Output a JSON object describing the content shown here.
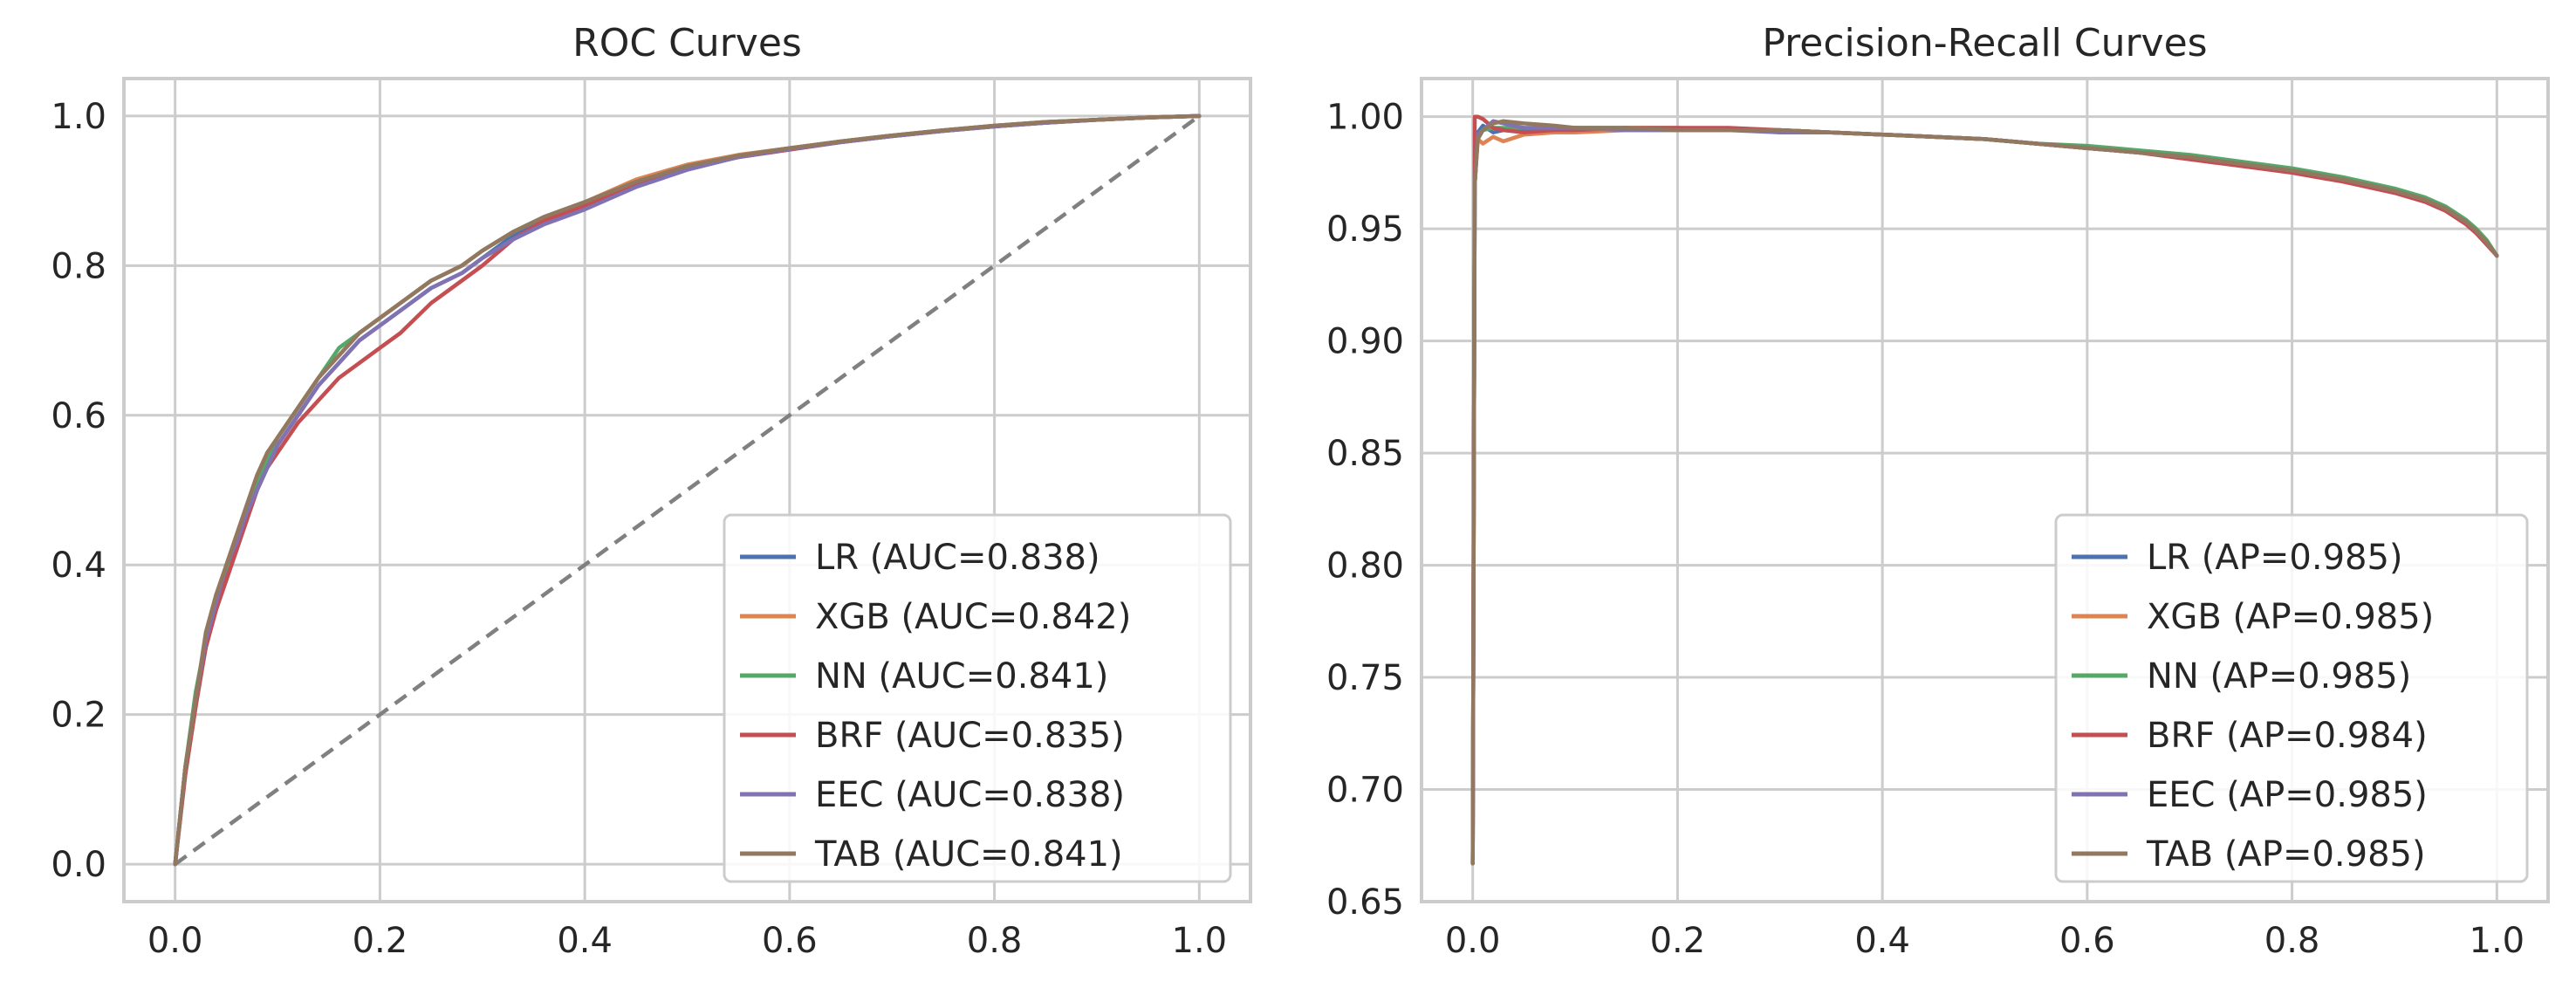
{
  "chart_data": [
    {
      "type": "line",
      "title": "ROC Curves",
      "xlabel": "",
      "ylabel": "",
      "xlim": [
        -0.05,
        1.05
      ],
      "ylim": [
        -0.05,
        1.05
      ],
      "xticks": [
        0.0,
        0.2,
        0.4,
        0.6,
        0.8,
        1.0
      ],
      "xtick_labels": [
        "0.0",
        "0.2",
        "0.4",
        "0.6",
        "0.8",
        "1.0"
      ],
      "yticks": [
        0.0,
        0.2,
        0.4,
        0.6,
        0.8,
        1.0
      ],
      "ytick_labels": [
        "0.0",
        "0.2",
        "0.4",
        "0.6",
        "0.8",
        "1.0"
      ],
      "grid": true,
      "legend_position": "lower-right",
      "reference_line": {
        "x": [
          0,
          1
        ],
        "y": [
          0,
          1
        ],
        "style": "dashed",
        "color": "#808080"
      },
      "series": [
        {
          "name": "LR (AUC=0.838)",
          "color": "#4c72b0",
          "x": [
            0,
            0.01,
            0.02,
            0.03,
            0.04,
            0.05,
            0.06,
            0.07,
            0.08,
            0.09,
            0.1,
            0.12,
            0.14,
            0.16,
            0.18,
            0.2,
            0.22,
            0.25,
            0.28,
            0.3,
            0.33,
            0.36,
            0.4,
            0.45,
            0.5,
            0.55,
            0.6,
            0.65,
            0.7,
            0.75,
            0.8,
            0.85,
            0.9,
            0.95,
            1.0
          ],
          "y": [
            0,
            0.13,
            0.22,
            0.29,
            0.34,
            0.38,
            0.42,
            0.46,
            0.5,
            0.53,
            0.56,
            0.6,
            0.64,
            0.67,
            0.7,
            0.72,
            0.74,
            0.77,
            0.79,
            0.81,
            0.84,
            0.86,
            0.88,
            0.91,
            0.93,
            0.945,
            0.955,
            0.965,
            0.973,
            0.98,
            0.986,
            0.991,
            0.995,
            0.998,
            1.0
          ]
        },
        {
          "name": "XGB (AUC=0.842)",
          "color": "#dd8452",
          "x": [
            0,
            0.01,
            0.02,
            0.03,
            0.04,
            0.05,
            0.06,
            0.07,
            0.08,
            0.09,
            0.1,
            0.12,
            0.14,
            0.16,
            0.18,
            0.2,
            0.22,
            0.25,
            0.28,
            0.3,
            0.33,
            0.36,
            0.4,
            0.45,
            0.5,
            0.55,
            0.6,
            0.65,
            0.7,
            0.75,
            0.8,
            0.85,
            0.9,
            0.95,
            1.0
          ],
          "y": [
            0,
            0.12,
            0.21,
            0.3,
            0.35,
            0.4,
            0.44,
            0.48,
            0.52,
            0.55,
            0.57,
            0.61,
            0.65,
            0.68,
            0.71,
            0.73,
            0.75,
            0.78,
            0.8,
            0.82,
            0.845,
            0.865,
            0.885,
            0.915,
            0.935,
            0.948,
            0.957,
            0.966,
            0.974,
            0.981,
            0.987,
            0.992,
            0.995,
            0.998,
            1.0
          ]
        },
        {
          "name": "NN (AUC=0.841)",
          "color": "#55a868",
          "x": [
            0,
            0.01,
            0.02,
            0.03,
            0.04,
            0.05,
            0.06,
            0.07,
            0.08,
            0.09,
            0.1,
            0.12,
            0.14,
            0.16,
            0.18,
            0.2,
            0.22,
            0.25,
            0.28,
            0.3,
            0.33,
            0.36,
            0.4,
            0.45,
            0.5,
            0.55,
            0.6,
            0.65,
            0.7,
            0.75,
            0.8,
            0.85,
            0.9,
            0.95,
            1.0
          ],
          "y": [
            0,
            0.13,
            0.23,
            0.3,
            0.35,
            0.39,
            0.43,
            0.47,
            0.51,
            0.54,
            0.57,
            0.61,
            0.65,
            0.69,
            0.71,
            0.73,
            0.75,
            0.78,
            0.8,
            0.82,
            0.845,
            0.865,
            0.885,
            0.912,
            0.933,
            0.947,
            0.957,
            0.966,
            0.974,
            0.981,
            0.987,
            0.992,
            0.995,
            0.998,
            1.0
          ]
        },
        {
          "name": "BRF (AUC=0.835)",
          "color": "#c44e52",
          "x": [
            0,
            0.01,
            0.02,
            0.03,
            0.04,
            0.05,
            0.06,
            0.07,
            0.08,
            0.09,
            0.1,
            0.12,
            0.14,
            0.16,
            0.18,
            0.2,
            0.22,
            0.25,
            0.28,
            0.3,
            0.33,
            0.36,
            0.4,
            0.45,
            0.5,
            0.55,
            0.6,
            0.65,
            0.7,
            0.75,
            0.8,
            0.85,
            0.9,
            0.95,
            1.0
          ],
          "y": [
            0,
            0.12,
            0.21,
            0.29,
            0.34,
            0.38,
            0.42,
            0.46,
            0.5,
            0.53,
            0.55,
            0.59,
            0.62,
            0.65,
            0.67,
            0.69,
            0.71,
            0.75,
            0.78,
            0.8,
            0.835,
            0.86,
            0.88,
            0.91,
            0.93,
            0.945,
            0.955,
            0.965,
            0.973,
            0.98,
            0.986,
            0.991,
            0.995,
            0.998,
            1.0
          ]
        },
        {
          "name": "EEC (AUC=0.838)",
          "color": "#8172b3",
          "x": [
            0,
            0.01,
            0.02,
            0.03,
            0.04,
            0.05,
            0.06,
            0.07,
            0.08,
            0.09,
            0.1,
            0.12,
            0.14,
            0.16,
            0.18,
            0.2,
            0.22,
            0.25,
            0.28,
            0.3,
            0.33,
            0.36,
            0.4,
            0.45,
            0.5,
            0.55,
            0.6,
            0.65,
            0.7,
            0.75,
            0.8,
            0.85,
            0.9,
            0.95,
            1.0
          ],
          "y": [
            0,
            0.13,
            0.22,
            0.3,
            0.35,
            0.4,
            0.43,
            0.47,
            0.5,
            0.53,
            0.56,
            0.6,
            0.64,
            0.67,
            0.7,
            0.72,
            0.74,
            0.77,
            0.79,
            0.81,
            0.835,
            0.855,
            0.875,
            0.905,
            0.928,
            0.945,
            0.956,
            0.965,
            0.973,
            0.98,
            0.986,
            0.991,
            0.995,
            0.998,
            1.0
          ]
        },
        {
          "name": "TAB (AUC=0.841)",
          "color": "#937860",
          "x": [
            0,
            0.01,
            0.02,
            0.03,
            0.04,
            0.05,
            0.06,
            0.07,
            0.08,
            0.09,
            0.1,
            0.12,
            0.14,
            0.16,
            0.18,
            0.2,
            0.22,
            0.25,
            0.28,
            0.3,
            0.33,
            0.36,
            0.4,
            0.45,
            0.5,
            0.55,
            0.6,
            0.65,
            0.7,
            0.75,
            0.8,
            0.85,
            0.9,
            0.95,
            1.0
          ],
          "y": [
            0,
            0.13,
            0.22,
            0.31,
            0.36,
            0.4,
            0.44,
            0.48,
            0.52,
            0.55,
            0.57,
            0.61,
            0.65,
            0.68,
            0.71,
            0.73,
            0.75,
            0.78,
            0.8,
            0.82,
            0.845,
            0.865,
            0.885,
            0.912,
            0.933,
            0.947,
            0.957,
            0.966,
            0.974,
            0.981,
            0.987,
            0.992,
            0.995,
            0.998,
            1.0
          ]
        }
      ]
    },
    {
      "type": "line",
      "title": "Precision-Recall Curves",
      "xlabel": "",
      "ylabel": "",
      "xlim": [
        -0.05,
        1.05
      ],
      "ylim": [
        0.65,
        1.017
      ],
      "xticks": [
        0.0,
        0.2,
        0.4,
        0.6,
        0.8,
        1.0
      ],
      "xtick_labels": [
        "0.0",
        "0.2",
        "0.4",
        "0.6",
        "0.8",
        "1.0"
      ],
      "yticks": [
        0.65,
        0.7,
        0.75,
        0.8,
        0.85,
        0.9,
        0.95,
        1.0
      ],
      "ytick_labels": [
        "0.65",
        "0.70",
        "0.75",
        "0.80",
        "0.85",
        "0.90",
        "0.95",
        "1.00"
      ],
      "grid": true,
      "legend_position": "lower-right",
      "series": [
        {
          "name": "LR (AP=0.985)",
          "color": "#4c72b0",
          "x": [
            0,
            0.002,
            0.005,
            0.01,
            0.02,
            0.03,
            0.05,
            0.08,
            0.1,
            0.15,
            0.2,
            0.25,
            0.3,
            0.35,
            0.4,
            0.45,
            0.5,
            0.55,
            0.6,
            0.65,
            0.7,
            0.75,
            0.8,
            0.85,
            0.9,
            0.93,
            0.95,
            0.97,
            0.98,
            0.99,
            1.0
          ],
          "y": [
            0.667,
            0.97,
            0.993,
            0.996,
            0.993,
            0.994,
            0.994,
            0.995,
            0.995,
            0.995,
            0.994,
            0.994,
            0.994,
            0.993,
            0.992,
            0.991,
            0.99,
            0.988,
            0.986,
            0.984,
            0.982,
            0.979,
            0.976,
            0.972,
            0.967,
            0.963,
            0.959,
            0.953,
            0.949,
            0.944,
            0.938
          ]
        },
        {
          "name": "XGB (AP=0.985)",
          "color": "#dd8452",
          "x": [
            0,
            0.002,
            0.005,
            0.01,
            0.02,
            0.03,
            0.05,
            0.08,
            0.1,
            0.15,
            0.2,
            0.25,
            0.3,
            0.35,
            0.4,
            0.45,
            0.5,
            0.55,
            0.6,
            0.65,
            0.7,
            0.75,
            0.8,
            0.85,
            0.9,
            0.93,
            0.95,
            0.97,
            0.98,
            0.99,
            1.0
          ],
          "y": [
            0.667,
            0.97,
            0.99,
            0.988,
            0.991,
            0.989,
            0.992,
            0.993,
            0.993,
            0.994,
            0.994,
            0.994,
            0.994,
            0.993,
            0.992,
            0.991,
            0.99,
            0.988,
            0.986,
            0.984,
            0.982,
            0.979,
            0.976,
            0.972,
            0.967,
            0.963,
            0.959,
            0.953,
            0.949,
            0.944,
            0.938
          ]
        },
        {
          "name": "NN (AP=0.985)",
          "color": "#55a868",
          "x": [
            0,
            0.002,
            0.005,
            0.01,
            0.02,
            0.03,
            0.05,
            0.08,
            0.1,
            0.15,
            0.2,
            0.25,
            0.3,
            0.35,
            0.4,
            0.45,
            0.5,
            0.55,
            0.6,
            0.65,
            0.7,
            0.75,
            0.8,
            0.85,
            0.9,
            0.93,
            0.95,
            0.97,
            0.98,
            0.99,
            1.0
          ],
          "y": [
            0.667,
            0.97,
            0.992,
            0.994,
            0.995,
            0.995,
            0.995,
            0.995,
            0.995,
            0.995,
            0.995,
            0.994,
            0.994,
            0.993,
            0.992,
            0.991,
            0.99,
            0.988,
            0.987,
            0.985,
            0.983,
            0.98,
            0.977,
            0.973,
            0.968,
            0.964,
            0.96,
            0.954,
            0.95,
            0.945,
            0.938
          ]
        },
        {
          "name": "BRF (AP=0.984)",
          "color": "#c44e52",
          "x": [
            0,
            0.002,
            0.005,
            0.01,
            0.02,
            0.03,
            0.05,
            0.08,
            0.1,
            0.15,
            0.2,
            0.25,
            0.3,
            0.35,
            0.4,
            0.45,
            0.5,
            0.55,
            0.6,
            0.65,
            0.7,
            0.75,
            0.8,
            0.85,
            0.9,
            0.93,
            0.95,
            0.97,
            0.98,
            0.99,
            1.0
          ],
          "y": [
            0.667,
            1.0,
            1.0,
            0.999,
            0.995,
            0.994,
            0.993,
            0.994,
            0.994,
            0.995,
            0.995,
            0.995,
            0.994,
            0.993,
            0.992,
            0.991,
            0.99,
            0.988,
            0.986,
            0.984,
            0.981,
            0.978,
            0.975,
            0.971,
            0.966,
            0.962,
            0.958,
            0.952,
            0.948,
            0.943,
            0.938
          ]
        },
        {
          "name": "EEC (AP=0.985)",
          "color": "#8172b3",
          "x": [
            0,
            0.002,
            0.005,
            0.01,
            0.02,
            0.03,
            0.05,
            0.08,
            0.1,
            0.15,
            0.2,
            0.25,
            0.3,
            0.35,
            0.4,
            0.45,
            0.5,
            0.55,
            0.6,
            0.65,
            0.7,
            0.75,
            0.8,
            0.85,
            0.9,
            0.93,
            0.95,
            0.97,
            0.98,
            0.99,
            1.0
          ],
          "y": [
            0.667,
            0.97,
            0.992,
            0.994,
            0.998,
            0.997,
            0.995,
            0.995,
            0.995,
            0.994,
            0.994,
            0.994,
            0.993,
            0.993,
            0.992,
            0.991,
            0.99,
            0.988,
            0.986,
            0.984,
            0.982,
            0.979,
            0.976,
            0.972,
            0.967,
            0.963,
            0.959,
            0.953,
            0.949,
            0.944,
            0.938
          ]
        },
        {
          "name": "TAB (AP=0.985)",
          "color": "#937860",
          "x": [
            0,
            0.002,
            0.005,
            0.01,
            0.02,
            0.03,
            0.05,
            0.08,
            0.1,
            0.15,
            0.2,
            0.25,
            0.3,
            0.35,
            0.4,
            0.45,
            0.5,
            0.55,
            0.6,
            0.65,
            0.7,
            0.75,
            0.8,
            0.85,
            0.9,
            0.93,
            0.95,
            0.97,
            0.98,
            0.99,
            1.0
          ],
          "y": [
            0.667,
            0.97,
            0.99,
            0.994,
            0.997,
            0.998,
            0.997,
            0.996,
            0.995,
            0.995,
            0.994,
            0.994,
            0.994,
            0.993,
            0.992,
            0.991,
            0.99,
            0.988,
            0.986,
            0.984,
            0.982,
            0.979,
            0.976,
            0.972,
            0.967,
            0.963,
            0.959,
            0.953,
            0.949,
            0.944,
            0.938
          ]
        }
      ]
    }
  ]
}
